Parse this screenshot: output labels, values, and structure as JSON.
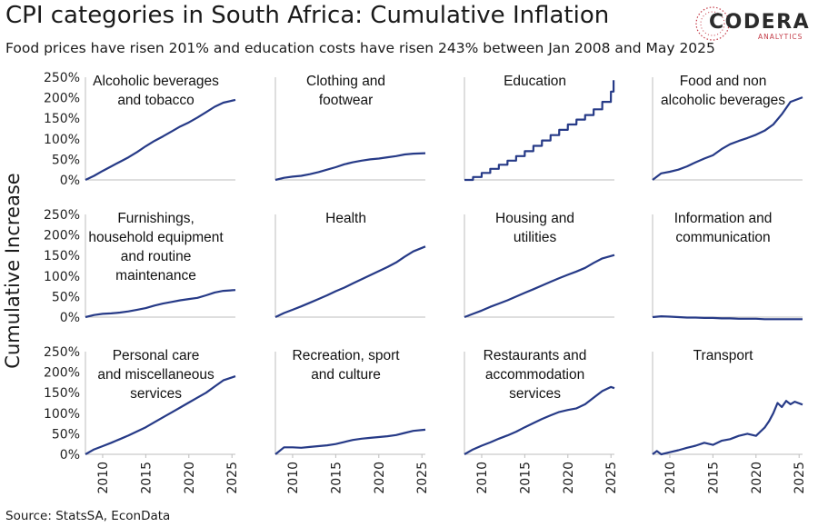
{
  "header": {
    "title": "CPI categories in South Africa: Cumulative Inflation",
    "subtitle": "Food prices have risen 201% and education costs have risen 243% between Jan 2008 and May 2025"
  },
  "logo": {
    "name": "CODERA",
    "tagline": "ANALYTICS"
  },
  "footer": {
    "source": "Source: StatsSA, EconData"
  },
  "chart_data": {
    "type": "line",
    "layout": "small-multiples 3x4",
    "ylabel": "Cumulative Increase",
    "xlabel": "",
    "x_ticks": [
      2010,
      2015,
      2020,
      2025
    ],
    "y_ticks": [
      "0%",
      "50%",
      "100%",
      "150%",
      "200%",
      "250%"
    ],
    "xlim": [
      2008,
      2025.4
    ],
    "ylim": [
      0,
      250
    ],
    "grid": false,
    "colors": {
      "line": "#263a87",
      "axis": "#bdbdbd"
    },
    "panels": [
      {
        "title_lines": [
          "Alcoholic beverages",
          "and tobacco"
        ],
        "points": [
          [
            2008,
            0
          ],
          [
            2009,
            10
          ],
          [
            2010,
            22
          ],
          [
            2011,
            33
          ],
          [
            2012,
            44
          ],
          [
            2013,
            55
          ],
          [
            2014,
            68
          ],
          [
            2015,
            82
          ],
          [
            2016,
            95
          ],
          [
            2017,
            106
          ],
          [
            2018,
            118
          ],
          [
            2019,
            130
          ],
          [
            2020,
            140
          ],
          [
            2021,
            152
          ],
          [
            2022,
            165
          ],
          [
            2023,
            178
          ],
          [
            2024,
            188
          ],
          [
            2025.4,
            195
          ]
        ]
      },
      {
        "title_lines": [
          "Clothing and",
          "footwear"
        ],
        "points": [
          [
            2008,
            0
          ],
          [
            2009,
            5
          ],
          [
            2010,
            8
          ],
          [
            2011,
            10
          ],
          [
            2012,
            14
          ],
          [
            2013,
            19
          ],
          [
            2014,
            25
          ],
          [
            2015,
            31
          ],
          [
            2016,
            38
          ],
          [
            2017,
            43
          ],
          [
            2018,
            47
          ],
          [
            2019,
            50
          ],
          [
            2020,
            52
          ],
          [
            2021,
            55
          ],
          [
            2022,
            58
          ],
          [
            2023,
            62
          ],
          [
            2024,
            64
          ],
          [
            2025.4,
            65
          ]
        ]
      },
      {
        "title_lines": [
          "Education"
        ],
        "points": [
          [
            2008,
            0
          ],
          [
            2008.99,
            0
          ],
          [
            2009,
            7
          ],
          [
            2009.99,
            7
          ],
          [
            2010,
            17
          ],
          [
            2010.99,
            17
          ],
          [
            2011,
            27
          ],
          [
            2011.99,
            27
          ],
          [
            2012,
            37
          ],
          [
            2012.99,
            37
          ],
          [
            2013,
            47
          ],
          [
            2013.99,
            47
          ],
          [
            2014,
            58
          ],
          [
            2014.99,
            58
          ],
          [
            2015,
            70
          ],
          [
            2015.99,
            70
          ],
          [
            2016,
            83
          ],
          [
            2016.99,
            83
          ],
          [
            2017,
            96
          ],
          [
            2017.99,
            96
          ],
          [
            2018,
            109
          ],
          [
            2018.99,
            109
          ],
          [
            2019,
            122
          ],
          [
            2019.99,
            122
          ],
          [
            2020,
            135
          ],
          [
            2020.99,
            135
          ],
          [
            2021,
            147
          ],
          [
            2021.99,
            147
          ],
          [
            2022,
            158
          ],
          [
            2022.99,
            158
          ],
          [
            2023,
            172
          ],
          [
            2023.99,
            172
          ],
          [
            2024,
            190
          ],
          [
            2024.99,
            190
          ],
          [
            2025,
            215
          ],
          [
            2025.3,
            215
          ],
          [
            2025.3,
            243
          ]
        ]
      },
      {
        "title_lines": [
          "Food and non",
          "alcoholic beverages"
        ],
        "points": [
          [
            2008,
            0
          ],
          [
            2009,
            16
          ],
          [
            2010,
            20
          ],
          [
            2011,
            25
          ],
          [
            2012,
            33
          ],
          [
            2013,
            43
          ],
          [
            2014,
            52
          ],
          [
            2015,
            60
          ],
          [
            2016,
            75
          ],
          [
            2017,
            87
          ],
          [
            2018,
            95
          ],
          [
            2019,
            102
          ],
          [
            2020,
            110
          ],
          [
            2021,
            120
          ],
          [
            2022,
            135
          ],
          [
            2023,
            160
          ],
          [
            2024,
            190
          ],
          [
            2025.4,
            201
          ]
        ]
      },
      {
        "title_lines": [
          "Furnishings,",
          "household equipment",
          "and routine",
          "maintenance"
        ],
        "points": [
          [
            2008,
            0
          ],
          [
            2009,
            5
          ],
          [
            2010,
            8
          ],
          [
            2011,
            9
          ],
          [
            2012,
            11
          ],
          [
            2013,
            14
          ],
          [
            2014,
            18
          ],
          [
            2015,
            22
          ],
          [
            2016,
            28
          ],
          [
            2017,
            33
          ],
          [
            2018,
            37
          ],
          [
            2019,
            41
          ],
          [
            2020,
            44
          ],
          [
            2021,
            47
          ],
          [
            2022,
            53
          ],
          [
            2023,
            60
          ],
          [
            2024,
            64
          ],
          [
            2025.4,
            66
          ]
        ]
      },
      {
        "title_lines": [
          "Health"
        ],
        "points": [
          [
            2008,
            0
          ],
          [
            2009,
            10
          ],
          [
            2010,
            18
          ],
          [
            2011,
            26
          ],
          [
            2012,
            35
          ],
          [
            2013,
            44
          ],
          [
            2014,
            53
          ],
          [
            2015,
            63
          ],
          [
            2016,
            72
          ],
          [
            2017,
            82
          ],
          [
            2018,
            92
          ],
          [
            2019,
            102
          ],
          [
            2020,
            112
          ],
          [
            2021,
            122
          ],
          [
            2022,
            133
          ],
          [
            2023,
            147
          ],
          [
            2024,
            160
          ],
          [
            2025.4,
            172
          ]
        ]
      },
      {
        "title_lines": [
          "Housing and",
          "utilities"
        ],
        "points": [
          [
            2008,
            0
          ],
          [
            2009,
            8
          ],
          [
            2010,
            16
          ],
          [
            2011,
            25
          ],
          [
            2012,
            33
          ],
          [
            2013,
            41
          ],
          [
            2014,
            50
          ],
          [
            2015,
            59
          ],
          [
            2016,
            68
          ],
          [
            2017,
            77
          ],
          [
            2018,
            86
          ],
          [
            2019,
            95
          ],
          [
            2020,
            103
          ],
          [
            2021,
            111
          ],
          [
            2022,
            120
          ],
          [
            2023,
            132
          ],
          [
            2024,
            143
          ],
          [
            2025.4,
            151
          ]
        ]
      },
      {
        "title_lines": [
          "Information and",
          "communication"
        ],
        "points": [
          [
            2008,
            0
          ],
          [
            2009,
            2
          ],
          [
            2010,
            1
          ],
          [
            2011,
            0
          ],
          [
            2012,
            -1
          ],
          [
            2013,
            -1
          ],
          [
            2014,
            -2
          ],
          [
            2015,
            -2
          ],
          [
            2016,
            -3
          ],
          [
            2017,
            -3
          ],
          [
            2018,
            -4
          ],
          [
            2019,
            -4
          ],
          [
            2020,
            -4
          ],
          [
            2021,
            -5
          ],
          [
            2022,
            -5
          ],
          [
            2023,
            -5
          ],
          [
            2024,
            -5
          ],
          [
            2025.4,
            -5
          ]
        ]
      },
      {
        "title_lines": [
          "Personal care",
          "and miscellaneous",
          "services"
        ],
        "points": [
          [
            2008,
            0
          ],
          [
            2009,
            12
          ],
          [
            2010,
            20
          ],
          [
            2011,
            28
          ],
          [
            2012,
            37
          ],
          [
            2013,
            46
          ],
          [
            2014,
            56
          ],
          [
            2015,
            66
          ],
          [
            2016,
            78
          ],
          [
            2017,
            90
          ],
          [
            2018,
            102
          ],
          [
            2019,
            114
          ],
          [
            2020,
            126
          ],
          [
            2021,
            138
          ],
          [
            2022,
            150
          ],
          [
            2023,
            165
          ],
          [
            2024,
            180
          ],
          [
            2025.4,
            190
          ]
        ]
      },
      {
        "title_lines": [
          "Recreation, sport",
          "and culture"
        ],
        "points": [
          [
            2008,
            0
          ],
          [
            2009,
            17
          ],
          [
            2010,
            17
          ],
          [
            2011,
            16
          ],
          [
            2012,
            18
          ],
          [
            2013,
            20
          ],
          [
            2014,
            22
          ],
          [
            2015,
            25
          ],
          [
            2016,
            30
          ],
          [
            2017,
            35
          ],
          [
            2018,
            38
          ],
          [
            2019,
            40
          ],
          [
            2020,
            42
          ],
          [
            2021,
            44
          ],
          [
            2022,
            47
          ],
          [
            2023,
            52
          ],
          [
            2024,
            57
          ],
          [
            2025.4,
            60
          ]
        ]
      },
      {
        "title_lines": [
          "Restaurants and",
          "accommodation",
          "services"
        ],
        "points": [
          [
            2008,
            0
          ],
          [
            2009,
            12
          ],
          [
            2010,
            21
          ],
          [
            2011,
            29
          ],
          [
            2012,
            38
          ],
          [
            2013,
            46
          ],
          [
            2014,
            55
          ],
          [
            2015,
            66
          ],
          [
            2016,
            76
          ],
          [
            2017,
            86
          ],
          [
            2018,
            95
          ],
          [
            2019,
            103
          ],
          [
            2020,
            108
          ],
          [
            2021,
            112
          ],
          [
            2022,
            122
          ],
          [
            2023,
            138
          ],
          [
            2024,
            154
          ],
          [
            2025,
            164
          ],
          [
            2025.4,
            161
          ]
        ]
      },
      {
        "title_lines": [
          "Transport"
        ],
        "points": [
          [
            2008,
            0
          ],
          [
            2008.5,
            8
          ],
          [
            2009,
            0
          ],
          [
            2010,
            5
          ],
          [
            2011,
            10
          ],
          [
            2012,
            16
          ],
          [
            2013,
            21
          ],
          [
            2014,
            28
          ],
          [
            2015,
            23
          ],
          [
            2016,
            33
          ],
          [
            2017,
            37
          ],
          [
            2018,
            45
          ],
          [
            2019,
            50
          ],
          [
            2020,
            45
          ],
          [
            2020.5,
            55
          ],
          [
            2021,
            65
          ],
          [
            2021.5,
            80
          ],
          [
            2022,
            100
          ],
          [
            2022.5,
            125
          ],
          [
            2023,
            115
          ],
          [
            2023.5,
            130
          ],
          [
            2024,
            122
          ],
          [
            2024.5,
            128
          ],
          [
            2025.4,
            121
          ]
        ]
      }
    ]
  }
}
